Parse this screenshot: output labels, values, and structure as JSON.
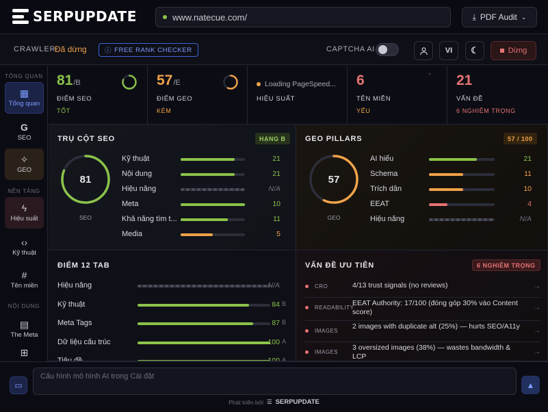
{
  "app": {
    "brand": "SERPUPDATE",
    "url": "www.natecue.com/",
    "pdf_label": "PDF Audit"
  },
  "toolbar": {
    "crawler_label": "CRAWLER",
    "crawler_status": "Đã dừng",
    "free_rank_label": "FREE RANK CHECKER",
    "captcha_label": "CAPTCHA AI",
    "captcha_on": false,
    "lang_label": "VI",
    "stop_label": "Dừng"
  },
  "sidebar": {
    "sections": [
      "TỔNG QUAN",
      "NỀN TẢNG",
      "NỘI DUNG"
    ],
    "items": [
      {
        "label": "Tổng quan",
        "icon": "grid-icon",
        "active": true
      },
      {
        "label": "SEO",
        "icon": "google-icon"
      },
      {
        "label": "GEO",
        "icon": "sparkle-icon"
      },
      {
        "label": "Hiệu suất",
        "icon": "bolt-icon"
      },
      {
        "label": "Kỹ thuật",
        "icon": "code-icon"
      },
      {
        "label": "Tên miền",
        "icon": "hash-icon"
      },
      {
        "label": "The Meta",
        "icon": "document-icon"
      },
      {
        "label": "",
        "icon": "sitemap-icon"
      }
    ]
  },
  "metrics": [
    {
      "value": "81",
      "suffix": "/B",
      "label": "ĐIỂM SEO",
      "sub": "TỐT",
      "color": "#8bc34a",
      "ring": 0.81
    },
    {
      "value": "57",
      "suffix": "/E",
      "label": "ĐIỂM GEO",
      "sub": "KÉM",
      "color": "#f0a24a",
      "ring": 0.57
    },
    {
      "loading": "Loading PageSpeed...",
      "label": "HIỆU SUẤT"
    },
    {
      "value": "6",
      "label": "TÊN MIỀN",
      "sub": "YẾU",
      "color": "#e57373"
    },
    {
      "value": "21",
      "label": "VẤN ĐỀ",
      "sub": "6 NGHIÊM TRỌNG",
      "color": "#e57373"
    }
  ],
  "seo_pillars": {
    "title": "TRỤ CỘT SEO",
    "badge": "HẠNG B",
    "score": "81",
    "ring_label": "SEO",
    "rows": [
      {
        "name": "Kỹ thuật",
        "value": "21",
        "fill": 0.84,
        "color": "#8bc34a"
      },
      {
        "name": "Nội dung",
        "value": "21",
        "fill": 0.84,
        "color": "#8bc34a"
      },
      {
        "name": "Hiệu năng",
        "value": "N/A",
        "fill": 0,
        "color": "#6d6e7c",
        "na": true
      },
      {
        "name": "Meta",
        "value": "10",
        "fill": 1.0,
        "color": "#8bc34a"
      },
      {
        "name": "Khả năng tìm t...",
        "value": "11",
        "fill": 0.73,
        "color": "#8bc34a"
      },
      {
        "name": "Media",
        "value": "5",
        "fill": 0.5,
        "color": "#f0a24a"
      }
    ]
  },
  "geo_pillars": {
    "title": "GEO PILLARS",
    "badge": "57 / 100",
    "score": "57",
    "ring_label": "GEO",
    "rows": [
      {
        "name": "AI hiểu",
        "value": "21",
        "fill": 0.73,
        "color": "#8bc34a"
      },
      {
        "name": "Schema",
        "value": "11",
        "fill": 0.52,
        "color": "#f0a24a"
      },
      {
        "name": "Trích dẫn",
        "value": "10",
        "fill": 0.52,
        "color": "#f0a24a"
      },
      {
        "name": "EEAT",
        "value": "4",
        "fill": 0.28,
        "color": "#e57373"
      },
      {
        "name": "Hiệu năng",
        "value": "N/A",
        "fill": 0,
        "color": "#6d6e7c",
        "na": true
      }
    ]
  },
  "tab_scores": {
    "title": "ĐIỂM 12 TAB",
    "rows": [
      {
        "name": "Hiệu năng",
        "value": "N/A",
        "grade": "",
        "fill": 0,
        "na": true
      },
      {
        "name": "Kỹ thuật",
        "value": "84",
        "grade": "B",
        "fill": 0.84
      },
      {
        "name": "Meta Tags",
        "value": "87",
        "grade": "B",
        "fill": 0.87
      },
      {
        "name": "Dữ liệu cấu trúc",
        "value": "100",
        "grade": "A",
        "fill": 1.0
      },
      {
        "name": "Tiêu đề",
        "value": "100",
        "grade": "A",
        "fill": 1.0
      }
    ]
  },
  "priority_issues": {
    "title": "VẤN ĐỀ ƯU TIÊN",
    "badge": "6 NGHIÊM TRỌNG",
    "items": [
      {
        "tag": "CRO",
        "text": "4/13 trust signals (no reviews)"
      },
      {
        "tag": "READABILITY",
        "text": "EEAT Authority: 17/100 (đóng góp 30% vào Content score)"
      },
      {
        "tag": "IMAGES",
        "text": "2 images with duplicate alt (25%) — hurts SEO/A11y"
      },
      {
        "tag": "IMAGES",
        "text": "3 oversized images (38%) — wastes bandwidth & LCP"
      }
    ]
  },
  "chat": {
    "placeholder": "Cấu hình mô hình AI trong Cài đặt",
    "footer_prefix": "Phát triển bởi",
    "footer_brand": "SERPUPDATE"
  }
}
